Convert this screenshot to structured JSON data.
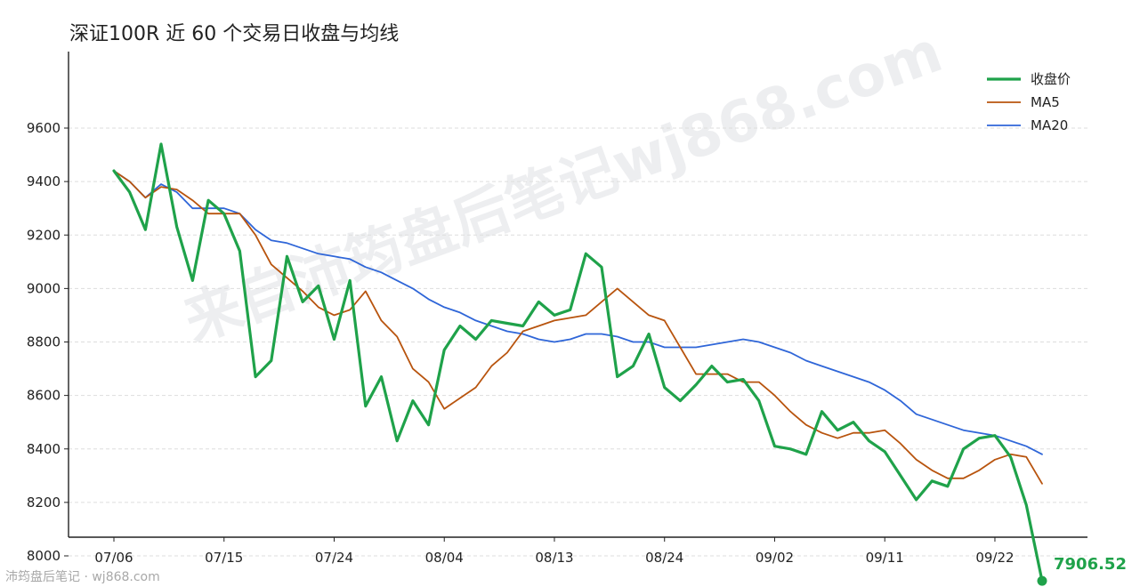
{
  "title": "深证100R 近 60 个交易日收盘与均线",
  "footer": "沛筠盘后笔记 · wj868.com",
  "watermark": "来自沛筠盘后笔记wj868.com",
  "colors": {
    "close": "#1fa24a",
    "ma5": "#b8540e",
    "ma20": "#2f66d8",
    "grid": "#dddddd"
  },
  "chart_data": {
    "type": "line",
    "title": "深证100R 近 60 个交易日收盘与均线",
    "xlabel": "",
    "ylabel": "",
    "ylim": [
      7850,
      9650
    ],
    "yticks": [
      8000,
      8200,
      8400,
      8600,
      8800,
      9000,
      9200,
      9400,
      9600
    ],
    "xticks": [
      {
        "index": 0,
        "label": "07/06"
      },
      {
        "index": 7,
        "label": "07/15"
      },
      {
        "index": 14,
        "label": "07/24"
      },
      {
        "index": 21,
        "label": "08/04"
      },
      {
        "index": 28,
        "label": "08/13"
      },
      {
        "index": 35,
        "label": "08/24"
      },
      {
        "index": 42,
        "label": "09/02"
      },
      {
        "index": 49,
        "label": "09/11"
      },
      {
        "index": 56,
        "label": "09/22"
      }
    ],
    "grid": "horizontal dashed",
    "legend": "top-right",
    "series": [
      {
        "name": "收盘价",
        "key": "close",
        "values": [
          9440,
          9360,
          9220,
          9540,
          9230,
          9030,
          9330,
          9280,
          9140,
          8670,
          8730,
          9120,
          8950,
          9010,
          8810,
          9030,
          8560,
          8670,
          8430,
          8580,
          8490,
          8770,
          8860,
          8810,
          8880,
          8870,
          8860,
          8950,
          8900,
          8920,
          9130,
          9080,
          8670,
          8710,
          8830,
          8630,
          8580,
          8640,
          8710,
          8650,
          8660,
          8580,
          8410,
          8400,
          8380,
          8540,
          8470,
          8500,
          8430,
          8390,
          8300,
          8210,
          8280,
          8260,
          8400,
          8440,
          8450,
          8370,
          8190,
          7906.52
        ]
      },
      {
        "name": "MA5",
        "key": "ma5",
        "values": [
          9440,
          9400,
          9340,
          9380,
          9370,
          9330,
          9280,
          9280,
          9280,
          9200,
          9090,
          9040,
          8990,
          8930,
          8900,
          8920,
          8990,
          8880,
          8820,
          8700,
          8650,
          8550,
          8590,
          8630,
          8710,
          8760,
          8840,
          8860,
          8880,
          8890,
          8900,
          8950,
          9000,
          8950,
          8900,
          8880,
          8780,
          8680,
          8680,
          8680,
          8650,
          8650,
          8600,
          8540,
          8490,
          8460,
          8440,
          8460,
          8460,
          8470,
          8420,
          8360,
          8320,
          8290,
          8290,
          8320,
          8360,
          8380,
          8370,
          8270
        ]
      },
      {
        "name": "MA20",
        "key": "ma20",
        "values": [
          9440,
          9400,
          9340,
          9390,
          9360,
          9300,
          9300,
          9300,
          9280,
          9220,
          9180,
          9170,
          9150,
          9130,
          9120,
          9110,
          9080,
          9060,
          9030,
          9000,
          8960,
          8930,
          8910,
          8880,
          8860,
          8840,
          8830,
          8810,
          8800,
          8810,
          8830,
          8830,
          8820,
          8800,
          8800,
          8780,
          8780,
          8780,
          8790,
          8800,
          8810,
          8800,
          8780,
          8760,
          8730,
          8710,
          8690,
          8670,
          8650,
          8620,
          8580,
          8530,
          8510,
          8490,
          8470,
          8460,
          8450,
          8430,
          8410,
          8380
        ]
      }
    ],
    "last_value_label": "7906.52"
  }
}
